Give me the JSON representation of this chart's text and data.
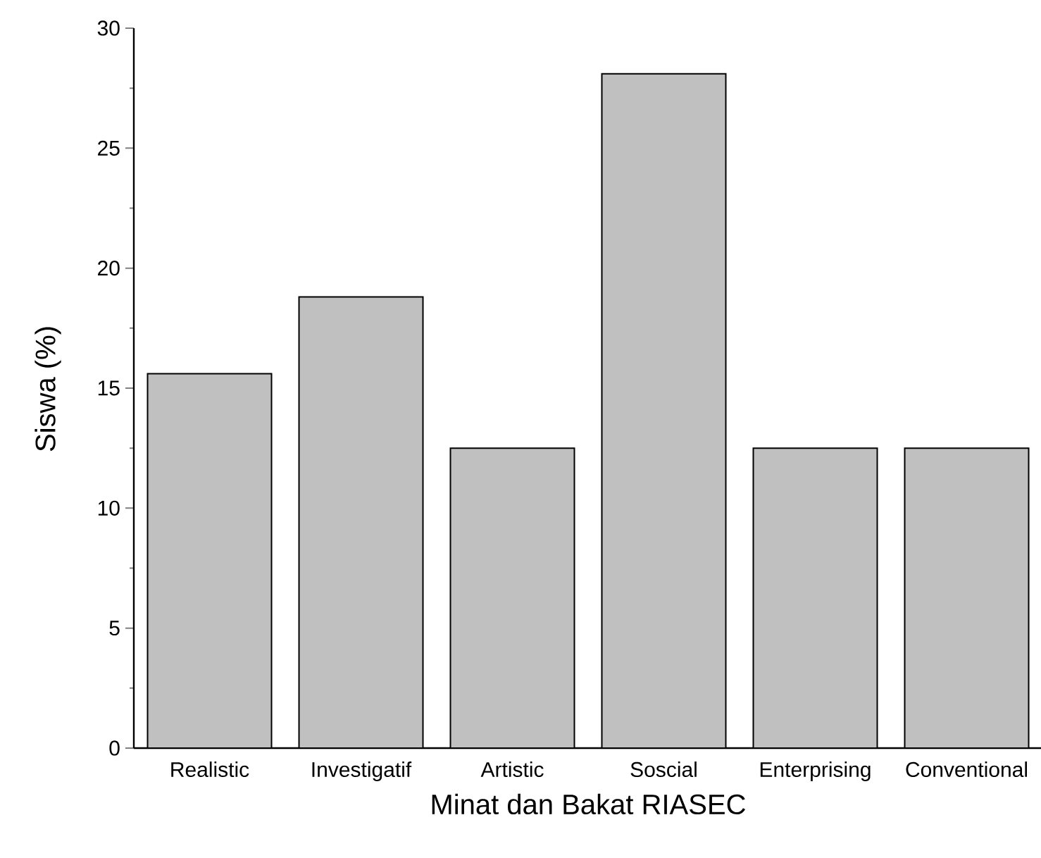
{
  "chart_data": {
    "type": "bar",
    "xlabel": "Minat dan Bakat RIASEC",
    "ylabel": "Siswa (%)",
    "categories": [
      "Realistic",
      "Investigatif",
      "Artistic",
      "Soscial",
      "Enterprising",
      "Conventional"
    ],
    "values": [
      15.6,
      18.8,
      12.5,
      28.1,
      12.5,
      12.5
    ],
    "color": "#c0c0c0",
    "ylim": [
      0,
      30
    ],
    "yticks": [
      0,
      5,
      10,
      15,
      20,
      25,
      30
    ],
    "grid": false
  }
}
